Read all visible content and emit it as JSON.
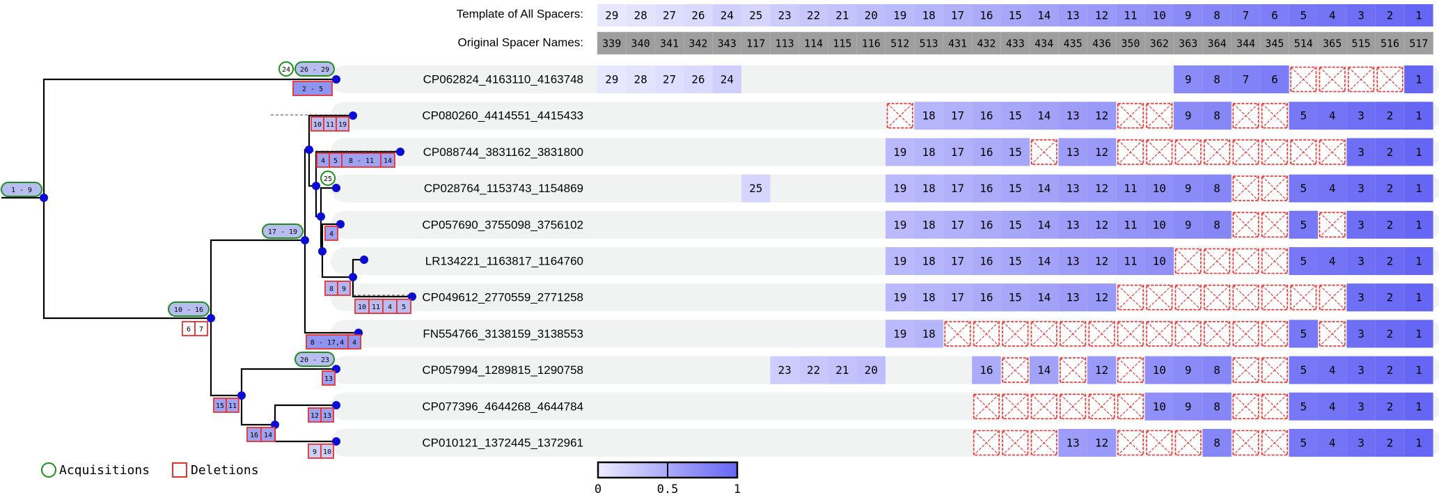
{
  "header": {
    "template_label": "Template of All Spacers:",
    "original_label": "Original Spacer Names:"
  },
  "template": [
    "29",
    "28",
    "27",
    "26",
    "24",
    "25",
    "23",
    "22",
    "21",
    "20",
    "19",
    "18",
    "17",
    "16",
    "15",
    "14",
    "13",
    "12",
    "11",
    "10",
    "9",
    "8",
    "7",
    "6",
    "5",
    "4",
    "3",
    "2",
    "1"
  ],
  "original_names": [
    "339",
    "340",
    "341",
    "342",
    "343",
    "117",
    "113",
    "114",
    "115",
    "116",
    "512",
    "513",
    "431",
    "432",
    "433",
    "434",
    "435",
    "436",
    "350",
    "362",
    "363",
    "364",
    "344",
    "345",
    "514",
    "365",
    "515",
    "516",
    "517"
  ],
  "colors": {
    "scale_low": "#ececff",
    "scale_high": "#6666f5",
    "header_gray": "#9e9e9e",
    "row_band": "#f1f2f2",
    "deletion": "#e8302f",
    "acquisition": "#1a8f1a",
    "tree": "#000000",
    "node": "#0b0bd6"
  },
  "rows": [
    {
      "name": "CP062824_4163110_4163748",
      "spacers": [
        "29",
        "28",
        "27",
        "26",
        "24",
        "",
        "",
        "",
        "",
        "",
        "",
        "",
        "",
        "",
        "",
        "",
        "",
        "",
        "",
        "",
        "9",
        "8",
        "7",
        "6",
        "x",
        "x",
        "x",
        "x",
        "1"
      ]
    },
    {
      "name": "CP080260_4414551_4415433",
      "spacers": [
        "",
        "",
        "",
        "",
        "",
        "",
        "",
        "",
        "",
        "",
        "x",
        "18",
        "17",
        "16",
        "15",
        "14",
        "13",
        "12",
        "x",
        "x",
        "9",
        "8",
        "x",
        "x",
        "5",
        "4",
        "3",
        "2",
        "1"
      ]
    },
    {
      "name": "CP088744_3831162_3831800",
      "spacers": [
        "",
        "",
        "",
        "",
        "",
        "",
        "",
        "",
        "",
        "",
        "19",
        "18",
        "17",
        "16",
        "15",
        "x",
        "13",
        "12",
        "x",
        "x",
        "x",
        "x",
        "x",
        "x",
        "x",
        "x",
        "3",
        "2",
        "1"
      ]
    },
    {
      "name": "CP028764_1153743_1154869",
      "spacers": [
        "",
        "",
        "",
        "",
        "",
        "25",
        "",
        "",
        "",
        "",
        "19",
        "18",
        "17",
        "16",
        "15",
        "14",
        "13",
        "12",
        "11",
        "10",
        "9",
        "8",
        "x",
        "x",
        "5",
        "4",
        "3",
        "2",
        "1"
      ]
    },
    {
      "name": "CP057690_3755098_3756102",
      "spacers": [
        "",
        "",
        "",
        "",
        "",
        "",
        "",
        "",
        "",
        "",
        "19",
        "18",
        "17",
        "16",
        "15",
        "14",
        "13",
        "12",
        "11",
        "10",
        "9",
        "8",
        "x",
        "x",
        "5",
        "x",
        "3",
        "2",
        "1"
      ]
    },
    {
      "name": "LR134221_1163817_1164760",
      "spacers": [
        "",
        "",
        "",
        "",
        "",
        "",
        "",
        "",
        "",
        "",
        "19",
        "18",
        "17",
        "16",
        "15",
        "14",
        "13",
        "12",
        "11",
        "10",
        "x",
        "x",
        "x",
        "x",
        "5",
        "4",
        "3",
        "2",
        "1"
      ]
    },
    {
      "name": "CP049612_2770559_2771258",
      "spacers": [
        "",
        "",
        "",
        "",
        "",
        "",
        "",
        "",
        "",
        "",
        "19",
        "18",
        "17",
        "16",
        "15",
        "14",
        "13",
        "12",
        "x",
        "x",
        "x",
        "x",
        "x",
        "x",
        "x",
        "x",
        "3",
        "2",
        "1"
      ]
    },
    {
      "name": "FN554766_3138159_3138553",
      "spacers": [
        "",
        "",
        "",
        "",
        "",
        "",
        "",
        "",
        "",
        "",
        "19",
        "18",
        "x",
        "x",
        "x",
        "x",
        "x",
        "x",
        "x",
        "x",
        "x",
        "x",
        "x",
        "x",
        "5",
        "x",
        "3",
        "2",
        "1"
      ]
    },
    {
      "name": "CP057994_1289815_1290758",
      "spacers": [
        "",
        "",
        "",
        "",
        "",
        "",
        "23",
        "22",
        "21",
        "20",
        "",
        "",
        "",
        "16",
        "x",
        "14",
        "x",
        "12",
        "x",
        "10",
        "9",
        "8",
        "x",
        "x",
        "5",
        "4",
        "3",
        "2",
        "1"
      ]
    },
    {
      "name": "CP077396_4644268_4644784",
      "spacers": [
        "",
        "",
        "",
        "",
        "",
        "",
        "",
        "",
        "",
        "",
        "",
        "",
        "",
        "x",
        "x",
        "x",
        "x",
        "x",
        "x",
        "10",
        "9",
        "8",
        "x",
        "x",
        "5",
        "4",
        "3",
        "2",
        "1"
      ]
    },
    {
      "name": "CP010121_1372445_1372961",
      "spacers": [
        "",
        "",
        "",
        "",
        "",
        "",
        "",
        "",
        "",
        "",
        "",
        "",
        "",
        "x",
        "x",
        "x",
        "13",
        "12",
        "x",
        "x",
        "x",
        "8",
        "x",
        "x",
        "5",
        "4",
        "3",
        "2",
        "1"
      ]
    }
  ],
  "tree_events": {
    "root_acq": "1 - 9",
    "n1_acq": "10 - 16",
    "n1_del": [
      "6",
      "7"
    ],
    "n2_acq": "17 - 19",
    "a_acq_24": "24",
    "a_acq": "26 - 29",
    "a_del": "2 - 5",
    "b_del": [
      "10",
      "11",
      "19"
    ],
    "c_del": [
      "4",
      "5",
      "8 - 11",
      "14"
    ],
    "d_acq": "25",
    "e_del": "4",
    "fg_del": [
      "8",
      "9"
    ],
    "g_del": [
      "10",
      "11",
      "4",
      "5"
    ],
    "h_del": [
      "8 - 17",
      "4"
    ],
    "i_acq": "20 - 23",
    "i_del": "13",
    "n3_del": [
      "15",
      "11"
    ],
    "n4_del": [
      "16",
      "14"
    ],
    "j_del": [
      "12",
      "13"
    ],
    "k_del": [
      "9",
      "10"
    ]
  },
  "legend": {
    "acquisitions": "Acquisitions",
    "deletions": "Deletions"
  },
  "colorbar": {
    "ticks": [
      "0",
      "0.5",
      "1"
    ]
  }
}
